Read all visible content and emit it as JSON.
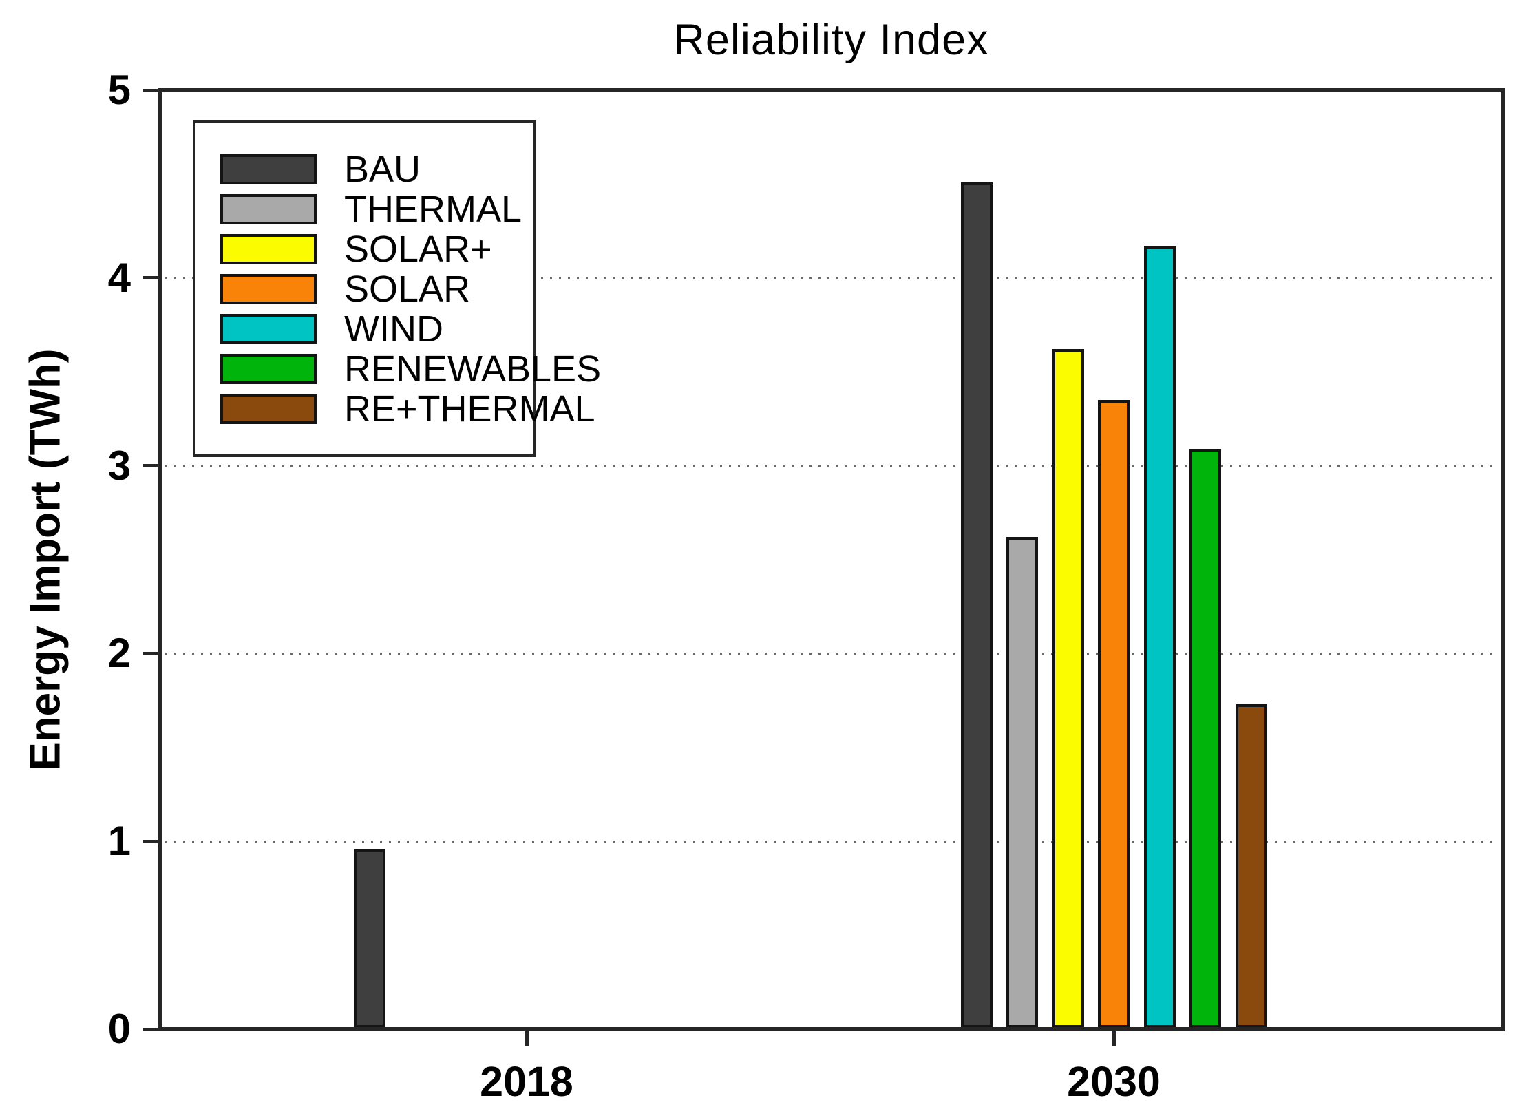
{
  "chart_data": {
    "type": "bar",
    "title": "Reliability Index",
    "ylabel": "Energy Import (TWh)",
    "xlabel": "",
    "ylim": [
      0,
      5
    ],
    "yticks": [
      0,
      1,
      2,
      3,
      4,
      5
    ],
    "gridlines": {
      "style": "dotted",
      "at": [
        1,
        2,
        3,
        4
      ]
    },
    "grid_on": true,
    "legend_position": "upper-left",
    "background_color": "#FFFFFF",
    "axis_color": "#262626",
    "grid_color": "#6A6A6A",
    "categories": [
      "2018",
      "2030"
    ],
    "series": [
      {
        "name": "BAU",
        "color": "#3F3F3F",
        "values": [
          0.96,
          4.51
        ]
      },
      {
        "name": "THERMAL",
        "color": "#A9A9A9",
        "values": [
          null,
          2.62
        ]
      },
      {
        "name": "SOLAR+",
        "color": "#FCFC00",
        "values": [
          null,
          3.62
        ]
      },
      {
        "name": "SOLAR",
        "color": "#F98208",
        "values": [
          null,
          3.35
        ]
      },
      {
        "name": "WIND",
        "color": "#00C4C4",
        "values": [
          null,
          4.17
        ]
      },
      {
        "name": "RENEWABLES",
        "color": "#00B40C",
        "values": [
          null,
          3.09
        ]
      },
      {
        "name": "RE+THERMAL",
        "color": "#8A4A0D",
        "values": [
          null,
          1.73
        ]
      }
    ]
  }
}
